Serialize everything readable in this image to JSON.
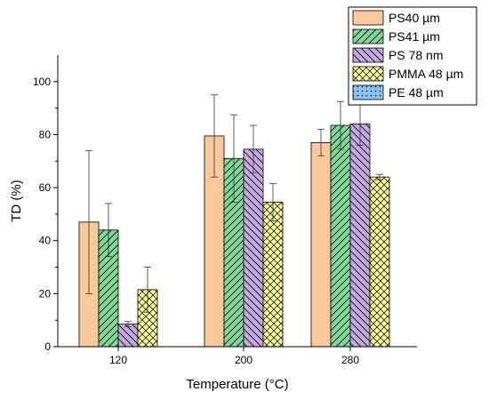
{
  "chart_data": {
    "type": "bar",
    "title": "",
    "xlabel": "Temperature (°C)",
    "ylabel": "TD (%)",
    "categories": [
      "120",
      "200",
      "280"
    ],
    "ylim": [
      0,
      110
    ],
    "yticks": [
      0,
      20,
      40,
      60,
      80,
      100
    ],
    "grid": false,
    "legend_position": "top-right",
    "series": [
      {
        "name": "PS40 µm",
        "values": [
          47,
          79.5,
          77
        ],
        "errors": [
          27,
          15.5,
          5
        ],
        "color": "#fbc89b",
        "pattern": "solid"
      },
      {
        "name": "PS41 µm",
        "values": [
          44,
          71,
          83.5
        ],
        "errors": [
          10,
          16.5,
          9
        ],
        "color": "#7fd99a",
        "pattern": "diagonal-up"
      },
      {
        "name": "PS 78 nm",
        "values": [
          8.5,
          74.5,
          84
        ],
        "errors": [
          1,
          9,
          8
        ],
        "color": "#c6a9e0",
        "pattern": "diagonal-down"
      },
      {
        "name": "PMMA 48 µm",
        "values": [
          21.5,
          54.5,
          64
        ],
        "errors": [
          8.5,
          7,
          1
        ],
        "color": "#f5f59a",
        "pattern": "crosshatch"
      },
      {
        "name": "PE 48 µm",
        "values": [
          null,
          null,
          null
        ],
        "errors": [
          null,
          null,
          null
        ],
        "color": "#86c2f2",
        "pattern": "dots"
      }
    ]
  }
}
